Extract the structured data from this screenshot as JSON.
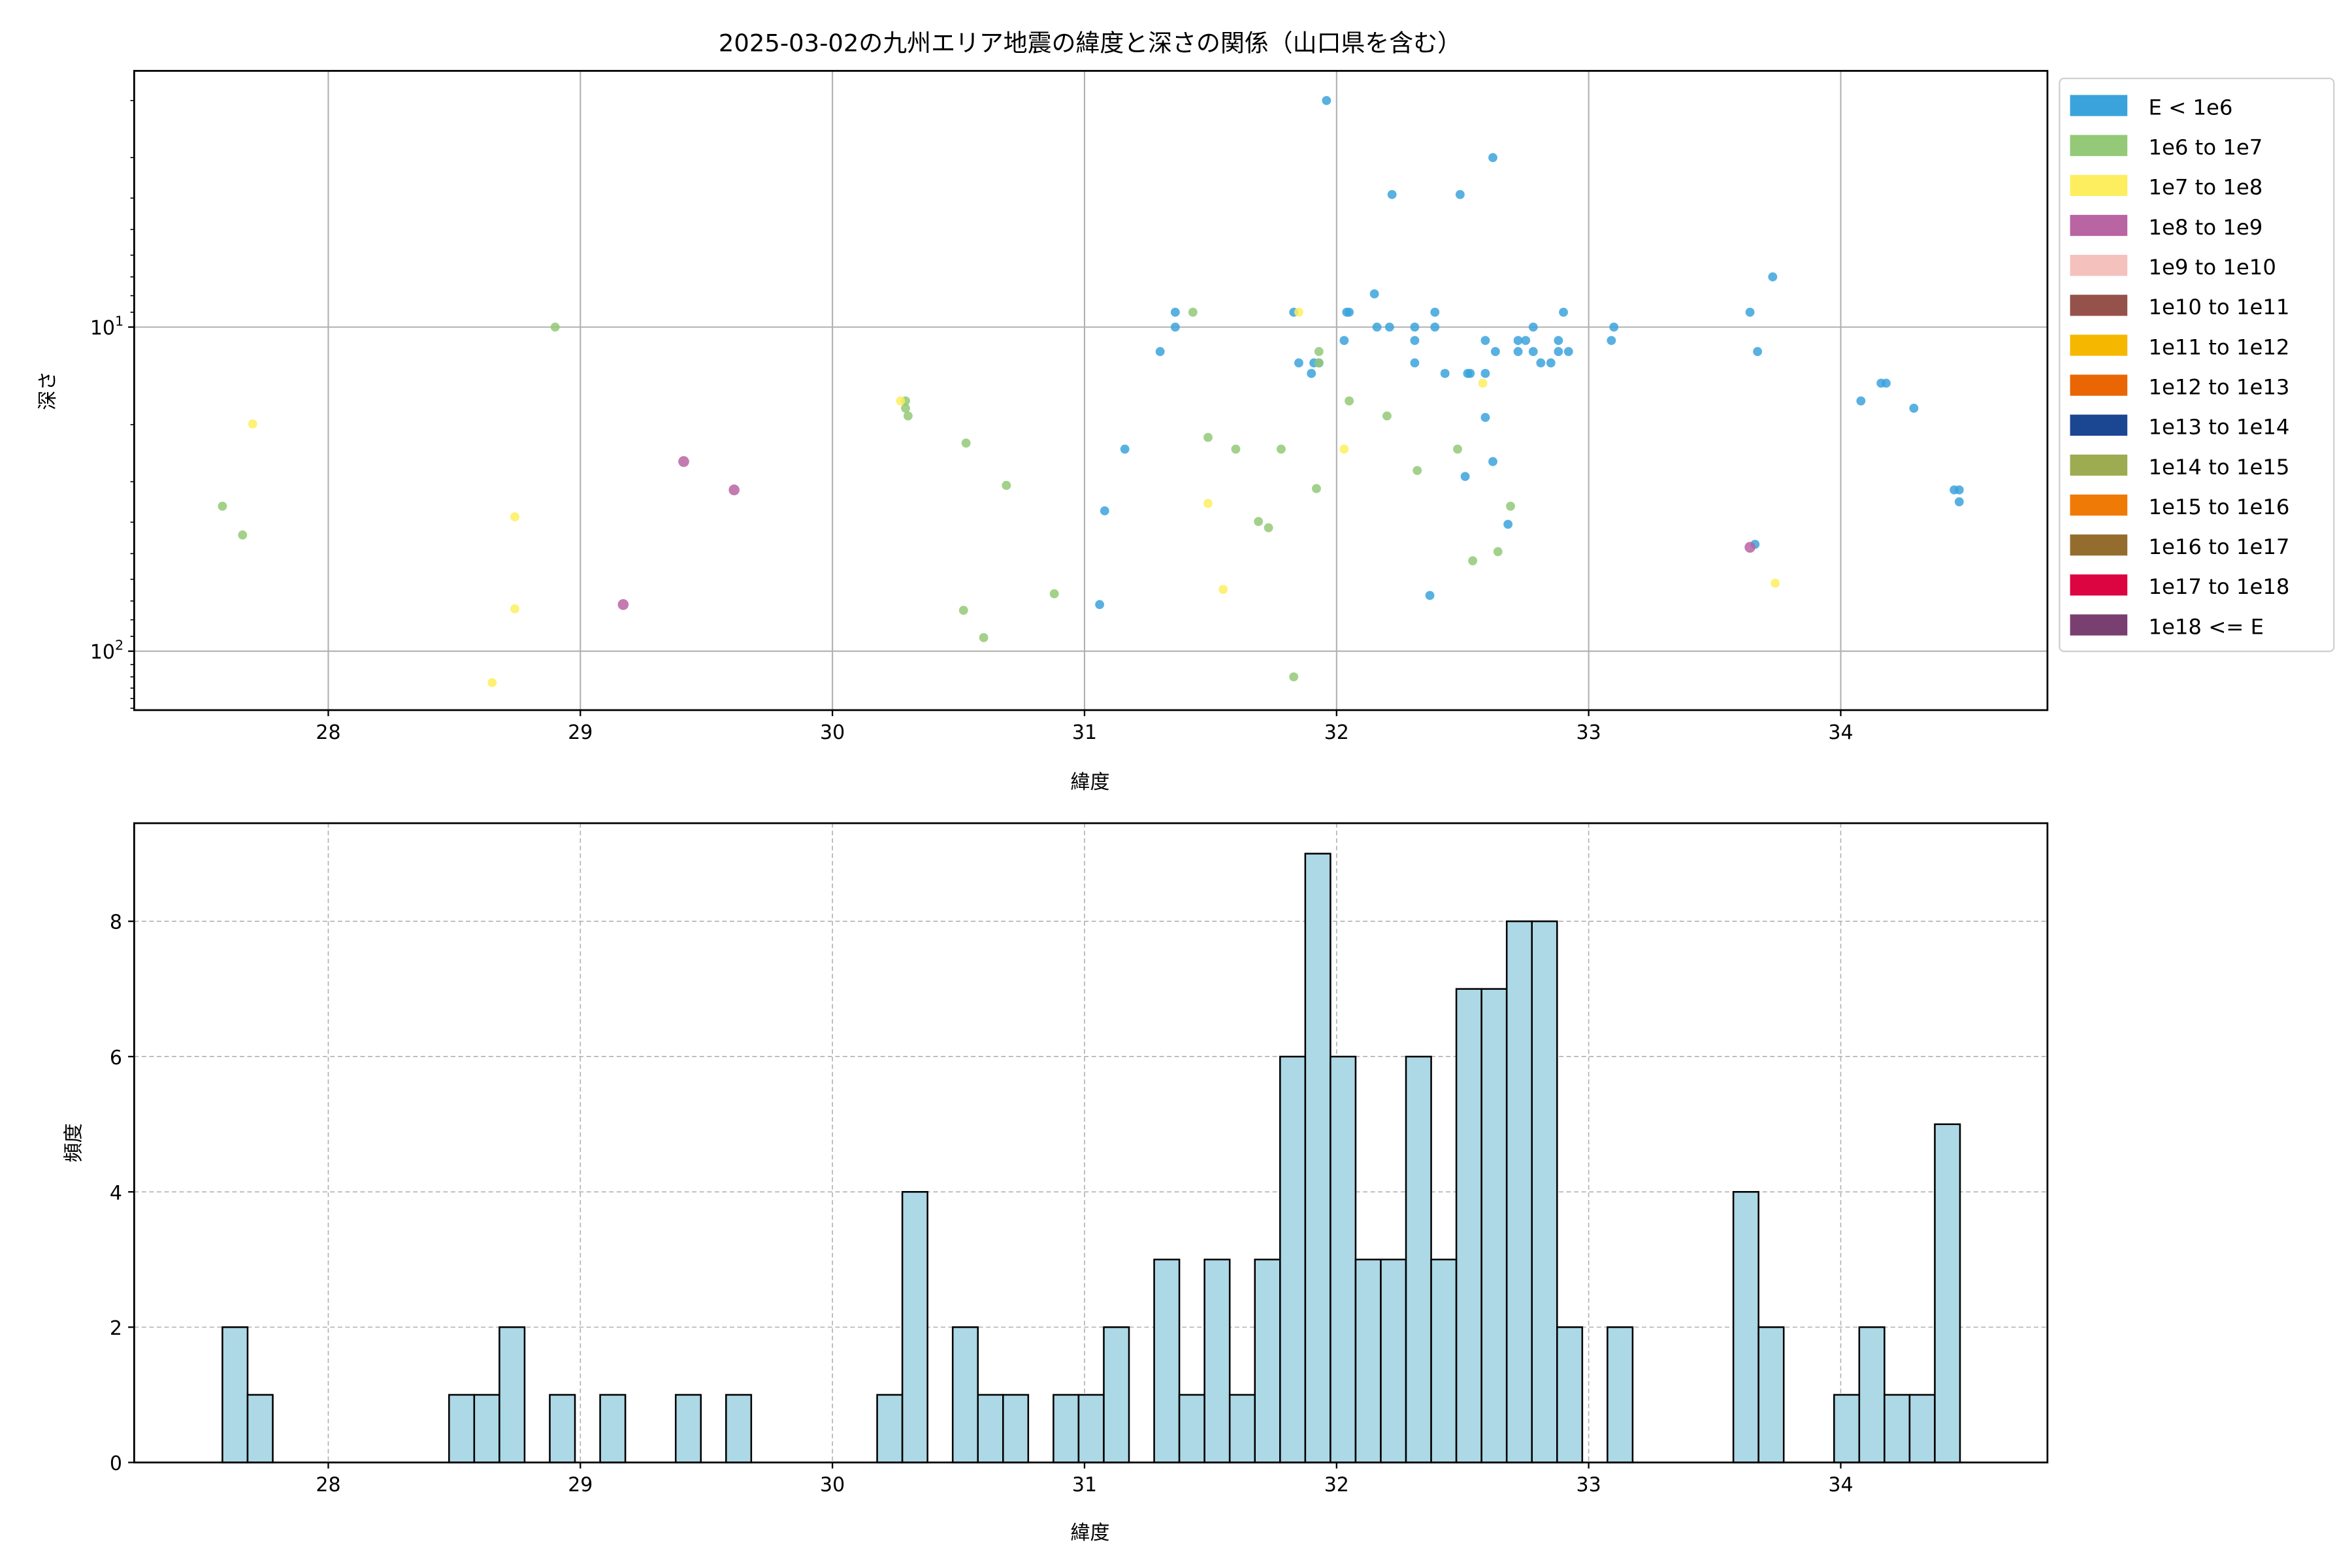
{
  "chart_data": [
    {
      "type": "scatter",
      "title": "2025-03-02の九州エリア地震の緯度と深さの関係（山口県を含む）",
      "xlabel": "緯度",
      "ylabel": "深さ",
      "xlim": [
        27.23,
        34.82
      ],
      "ylim": [
        152,
        1.62
      ],
      "yscale": "log",
      "y_inverted": true,
      "xticks": [
        "28",
        "29",
        "30",
        "31",
        "32",
        "33",
        "34"
      ],
      "xtick_values": [
        28,
        29,
        30,
        31,
        32,
        33,
        34
      ],
      "yticks": [
        {
          "base": "10",
          "exp": "1",
          "value": 10
        },
        {
          "base": "10",
          "exp": "2",
          "value": 100
        }
      ],
      "grid": true,
      "legend_position": "outside-right",
      "legend": [
        {
          "label": "E < 1e6",
          "color": "#3ba3dc"
        },
        {
          "label": "1e6 to 1e7",
          "color": "#93c977"
        },
        {
          "label": "1e7 to 1e8",
          "color": "#fdee5f"
        },
        {
          "label": "1e8 to 1e9",
          "color": "#b964a3"
        },
        {
          "label": "1e9 to 1e10",
          "color": "#f5c1bd"
        },
        {
          "label": "1e10 to 1e11",
          "color": "#94524a"
        },
        {
          "label": "1e11 to 1e12",
          "color": "#f5b700"
        },
        {
          "label": "1e12 to 1e13",
          "color": "#ea6503"
        },
        {
          "label": "1e13 to 1e14",
          "color": "#1b4692"
        },
        {
          "label": "1e14 to 1e15",
          "color": "#9dab51"
        },
        {
          "label": "1e15 to 1e16",
          "color": "#f07a06"
        },
        {
          "label": "1e16 to 1e17",
          "color": "#946d2e"
        },
        {
          "label": "1e17 to 1e18",
          "color": "#dc0541"
        },
        {
          "label": "1e18 <= E",
          "color": "#7a3f71"
        }
      ],
      "series": [
        {
          "name": "E < 1e6",
          "points": [
            [
              31.96,
              2.0
            ],
            [
              32.62,
              3.0
            ],
            [
              32.22,
              3.9
            ],
            [
              32.49,
              3.9
            ],
            [
              33.73,
              7.0
            ],
            [
              31.36,
              9.0
            ],
            [
              31.36,
              10
            ],
            [
              31.3,
              11.9
            ],
            [
              31.16,
              23.8
            ],
            [
              31.08,
              36.9
            ],
            [
              31.06,
              71.8
            ],
            [
              31.83,
              9.0
            ],
            [
              32.04,
              9.0
            ],
            [
              32.05,
              9.0
            ],
            [
              32.15,
              7.9
            ],
            [
              32.16,
              10
            ],
            [
              32.21,
              10
            ],
            [
              32.31,
              10
            ],
            [
              32.39,
              9.0
            ],
            [
              32.39,
              10
            ],
            [
              32.03,
              11.0
            ],
            [
              32.31,
              11.0
            ],
            [
              32.59,
              11.0
            ],
            [
              32.78,
              10
            ],
            [
              32.9,
              9.0
            ],
            [
              33.1,
              10
            ],
            [
              33.09,
              11.0
            ],
            [
              33.64,
              9.0
            ],
            [
              33.67,
              11.9
            ],
            [
              31.85,
              12.9
            ],
            [
              31.93,
              12.9
            ],
            [
              31.91,
              12.9
            ],
            [
              31.9,
              13.9
            ],
            [
              32.31,
              12.9
            ],
            [
              32.43,
              13.9
            ],
            [
              32.52,
              13.9
            ],
            [
              32.53,
              13.9
            ],
            [
              32.59,
              13.9
            ],
            [
              32.63,
              11.9
            ],
            [
              32.72,
              11.0
            ],
            [
              32.75,
              11.0
            ],
            [
              32.72,
              11.9
            ],
            [
              32.78,
              11.9
            ],
            [
              32.81,
              12.9
            ],
            [
              32.85,
              12.9
            ],
            [
              32.88,
              11.0
            ],
            [
              32.88,
              11.9
            ],
            [
              32.92,
              11.9
            ],
            [
              32.59,
              19.0
            ],
            [
              32.62,
              26.0
            ],
            [
              32.51,
              28.9
            ],
            [
              32.68,
              40.6
            ],
            [
              32.37,
              67.3
            ],
            [
              33.66,
              46.8
            ],
            [
              34.08,
              16.9
            ],
            [
              34.16,
              14.9
            ],
            [
              34.18,
              14.9
            ],
            [
              34.29,
              17.8
            ],
            [
              34.45,
              31.8
            ],
            [
              34.47,
              31.8
            ],
            [
              34.47,
              34.6
            ]
          ]
        },
        {
          "name": "1e6 to 1e7",
          "points": [
            [
              27.58,
              35.7
            ],
            [
              27.66,
              43.8
            ],
            [
              28.9,
              10
            ],
            [
              30.29,
              16.9
            ],
            [
              30.29,
              17.8
            ],
            [
              30.3,
              18.8
            ],
            [
              30.53,
              22.8
            ],
            [
              30.69,
              30.8
            ],
            [
              30.52,
              74.8
            ],
            [
              30.6,
              90.8
            ],
            [
              30.88,
              66.5
            ],
            [
              31.43,
              9.0
            ],
            [
              31.49,
              21.9
            ],
            [
              31.6,
              23.8
            ],
            [
              31.78,
              23.8
            ],
            [
              31.69,
              39.8
            ],
            [
              31.73,
              41.6
            ],
            [
              31.92,
              31.5
            ],
            [
              31.93,
              11.9
            ],
            [
              31.93,
              12.9
            ],
            [
              32.05,
              16.9
            ],
            [
              32.2,
              18.8
            ],
            [
              32.32,
              27.7
            ],
            [
              32.48,
              23.8
            ],
            [
              32.69,
              35.7
            ],
            [
              32.64,
              49.3
            ],
            [
              32.54,
              52.6
            ],
            [
              31.83,
              120
            ]
          ]
        },
        {
          "name": "1e7 to 1e8",
          "points": [
            [
              27.7,
              19.9
            ],
            [
              28.74,
              38.5
            ],
            [
              28.74,
              74.0
            ],
            [
              28.65,
              125
            ],
            [
              30.27,
              16.9
            ],
            [
              31.85,
              9.0
            ],
            [
              32.58,
              14.9
            ],
            [
              32.03,
              23.8
            ],
            [
              31.49,
              35.0
            ],
            [
              31.55,
              64.5
            ],
            [
              33.74,
              61.7
            ]
          ]
        },
        {
          "name": "1e8 to 1e9",
          "points": [
            [
              29.41,
              26.0
            ],
            [
              29.61,
              31.8
            ],
            [
              29.17,
              71.8
            ],
            [
              33.64,
              47.8
            ]
          ]
        }
      ]
    },
    {
      "type": "bar",
      "subtype": "histogram",
      "xlabel": "緯度",
      "ylabel": "頻度",
      "xlim": [
        27.23,
        34.82
      ],
      "ylim": [
        0,
        9.45
      ],
      "xticks": [
        "28",
        "29",
        "30",
        "31",
        "32",
        "33",
        "34"
      ],
      "xtick_values": [
        28,
        29,
        30,
        31,
        32,
        33,
        34
      ],
      "yticks": [
        "0",
        "2",
        "4",
        "6",
        "8"
      ],
      "ytick_values": [
        0,
        2,
        4,
        6,
        8
      ],
      "grid": true,
      "bar_color": "#add8e6",
      "bin_start": 27.58,
      "bin_width": 0.0999,
      "counts": [
        2,
        1,
        0,
        0,
        0,
        0,
        0,
        0,
        0,
        1,
        1,
        2,
        0,
        1,
        0,
        1,
        0,
        0,
        1,
        0,
        1,
        0,
        0,
        0,
        0,
        0,
        1,
        4,
        0,
        2,
        1,
        1,
        0,
        1,
        1,
        2,
        0,
        3,
        1,
        3,
        1,
        3,
        6,
        9,
        6,
        3,
        3,
        6,
        3,
        7,
        7,
        8,
        8,
        2,
        0,
        2,
        0,
        0,
        0,
        0,
        4,
        2,
        0,
        0,
        1,
        2,
        1,
        1,
        5
      ]
    }
  ]
}
